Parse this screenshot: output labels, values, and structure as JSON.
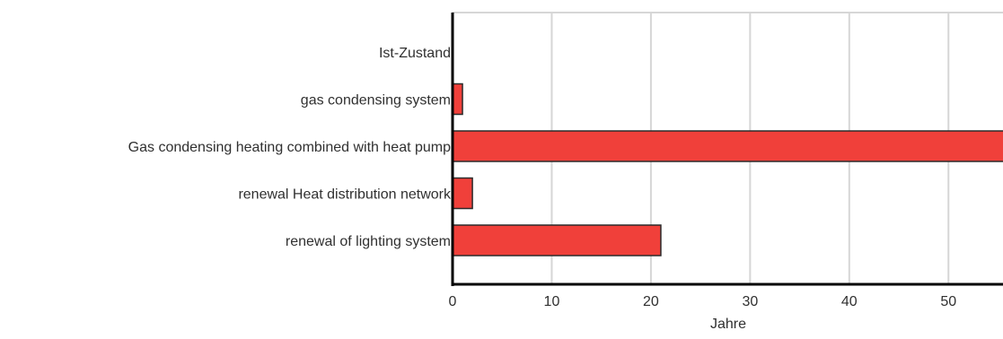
{
  "chart_data": {
    "type": "bar",
    "orientation": "horizontal",
    "categories": [
      "Ist-Zustand",
      "gas condensing system",
      "Gas condensing heating combined with heat pump",
      "renewal Heat distribution network",
      "renewal of lighting system"
    ],
    "values": [
      0,
      1,
      58,
      2,
      21
    ],
    "title": "",
    "xlabel": "Jahre",
    "ylabel": "",
    "xlim": [
      0,
      55.5
    ],
    "xticks": [
      0,
      10,
      20,
      30,
      40,
      50
    ],
    "xtick_labels": [
      "0",
      "10",
      "20",
      "30",
      "40",
      "50"
    ],
    "grid": "vertical",
    "legend": "none",
    "colors": {
      "bar_fill": "#f0403a",
      "bar_stroke": "#2b2b2b",
      "grid": "#d6d6d6",
      "axis": "#000000",
      "text": "#303030"
    }
  }
}
